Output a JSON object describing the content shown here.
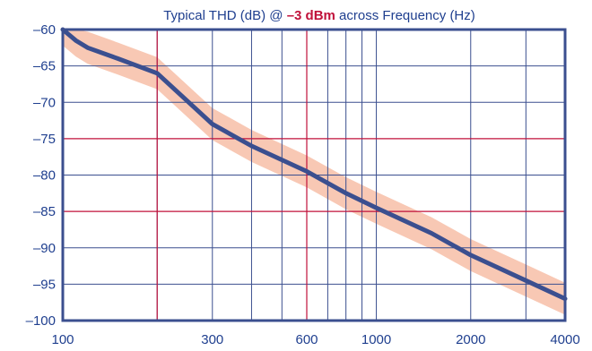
{
  "chart_data": {
    "type": "line",
    "title": {
      "prefix": "Typical THD (dB) @ ",
      "highlight": "–3 dBm",
      "suffix": " across Frequency (Hz)"
    },
    "xlabel": "",
    "ylabel": "",
    "x_scale": "log",
    "xlim": [
      100,
      4000
    ],
    "ylim": [
      -100,
      -60
    ],
    "x_tick_labels": [
      {
        "value": 100,
        "label": "100"
      },
      {
        "value": 300,
        "label": "300"
      },
      {
        "value": 600,
        "label": "600"
      },
      {
        "value": 1000,
        "label": "1000"
      },
      {
        "value": 2000,
        "label": "2000"
      },
      {
        "value": 4000,
        "label": "4000"
      }
    ],
    "y_tick_labels": [
      {
        "value": -60,
        "label": "–60"
      },
      {
        "value": -65,
        "label": "–65"
      },
      {
        "value": -70,
        "label": "–70"
      },
      {
        "value": -75,
        "label": "–75"
      },
      {
        "value": -80,
        "label": "–80"
      },
      {
        "value": -85,
        "label": "–85"
      },
      {
        "value": -90,
        "label": "–90"
      },
      {
        "value": -95,
        "label": "–95"
      },
      {
        "value": -100,
        "label": "–100"
      }
    ],
    "grid": true,
    "x_gridlines_blue": [
      100,
      200,
      300,
      400,
      500,
      600,
      700,
      800,
      900,
      1000,
      2000,
      3000,
      4000
    ],
    "x_gridlines_red": [
      200,
      600
    ],
    "y_gridlines_blue": [
      -60,
      -65,
      -70,
      -80,
      -90,
      -95,
      -100
    ],
    "y_gridlines_red": [
      -75,
      -85
    ],
    "series": [
      {
        "x": [
          100,
          110,
          120,
          150,
          200,
          300,
          400,
          600,
          800,
          1000,
          1500,
          2000,
          3000,
          4000
        ],
        "y": [
          -60,
          -61.5,
          -62.5,
          -64,
          -66,
          -73,
          -76,
          -79.5,
          -82.5,
          -84.5,
          -88,
          -91,
          -94.5,
          -97
        ],
        "band_halfwidth_db": 2.2
      }
    ],
    "colors": {
      "axis": "#3b4f8f",
      "line": "#3b4f8f",
      "grid_blue": "#3b4f8f",
      "grid_red": "#c0113a",
      "band": "#f8c8b4",
      "title": "#1f3f8f",
      "title_highlight": "#c0113a",
      "tick_text": "#1f3f8f"
    }
  }
}
